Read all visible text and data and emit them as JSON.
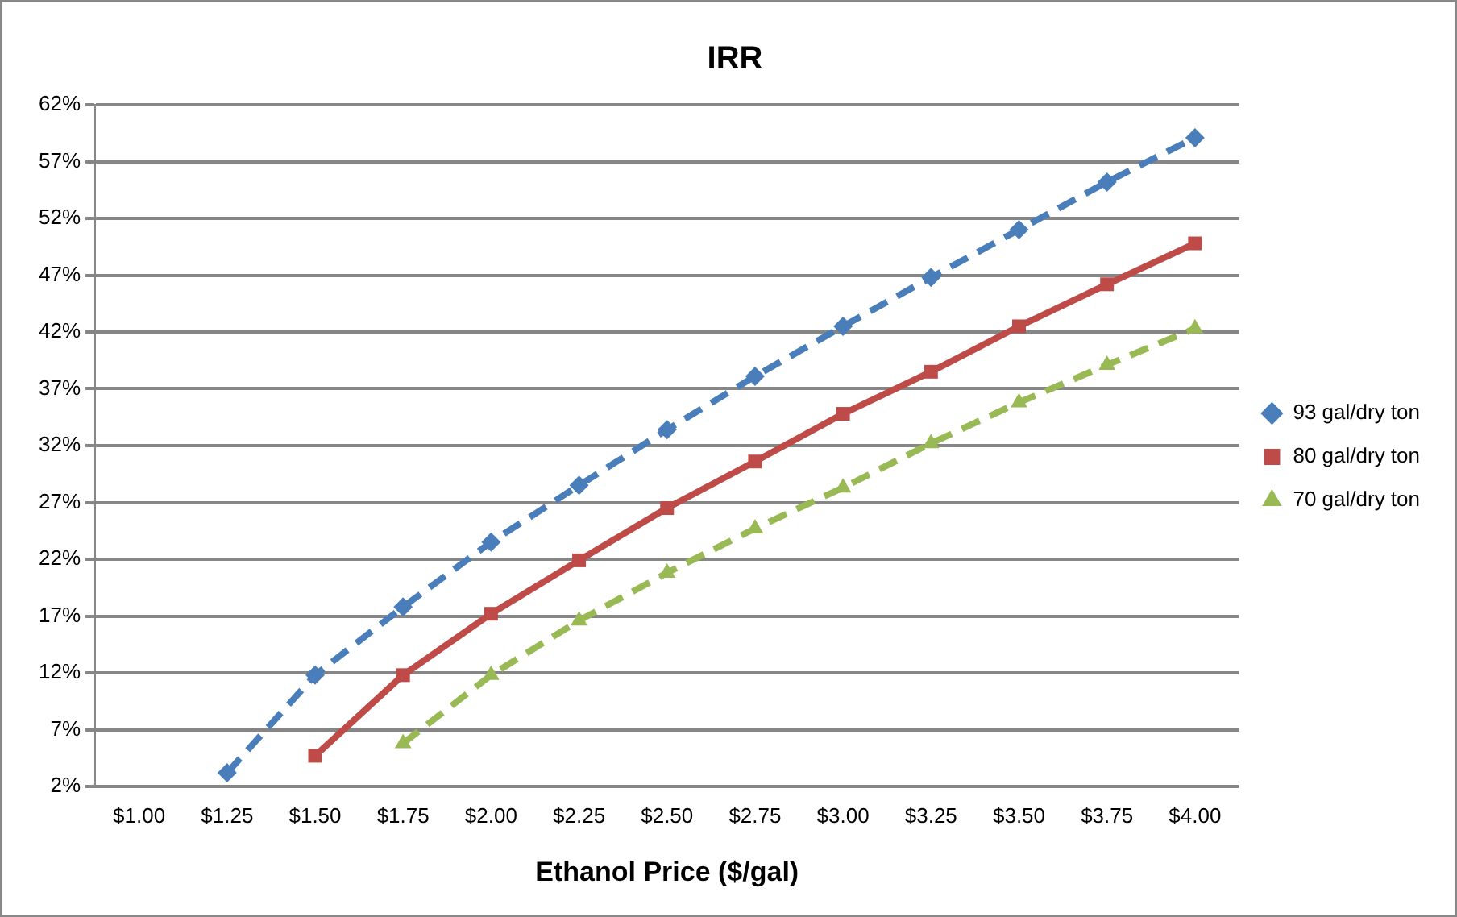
{
  "chart_data": {
    "type": "line",
    "title": "IRR",
    "xlabel": "Ethanol Price ($/gal)",
    "categories": [
      "$1.00",
      "$1.25",
      "$1.50",
      "$1.75",
      "$2.00",
      "$2.25",
      "$2.50",
      "$2.75",
      "$3.00",
      "$3.25",
      "$3.50",
      "$3.75",
      "$4.00"
    ],
    "series": [
      {
        "name": "93 gal/dry ton",
        "color": "#4a7ebb",
        "marker": "diamond",
        "line_style": "dashed",
        "values": [
          null,
          3.2,
          11.8,
          17.8,
          23.5,
          28.5,
          33.4,
          38.1,
          42.5,
          46.8,
          51,
          55.2,
          59.1
        ]
      },
      {
        "name": "80 gal/dry ton",
        "color": "#be4b48",
        "marker": "square",
        "line_style": "solid",
        "values": [
          null,
          null,
          4.7,
          11.8,
          17.2,
          21.9,
          26.5,
          30.6,
          34.8,
          38.5,
          42.5,
          46.2,
          49.8
        ]
      },
      {
        "name": "70 gal/dry ton",
        "color": "#98b954",
        "marker": "triangle",
        "line_style": "dashed",
        "values": [
          null,
          null,
          null,
          5.8,
          11.8,
          16.6,
          20.8,
          24.7,
          28.3,
          32.2,
          35.8,
          39.1,
          42.3
        ]
      }
    ],
    "ylim": [
      2,
      62
    ],
    "yticks": [
      {
        "value": 2,
        "label": "2%"
      },
      {
        "value": 7,
        "label": "7%"
      },
      {
        "value": 12,
        "label": "12%"
      },
      {
        "value": 17,
        "label": "17%"
      },
      {
        "value": 22,
        "label": "22%"
      },
      {
        "value": 27,
        "label": "27%"
      },
      {
        "value": 32,
        "label": "32%"
      },
      {
        "value": 37,
        "label": "37%"
      },
      {
        "value": 42,
        "label": "42%"
      },
      {
        "value": 47,
        "label": "47%"
      },
      {
        "value": 52,
        "label": "52%"
      },
      {
        "value": 57,
        "label": "57%"
      },
      {
        "value": 62,
        "label": "62%"
      }
    ],
    "grid": "y",
    "legend": "right"
  }
}
